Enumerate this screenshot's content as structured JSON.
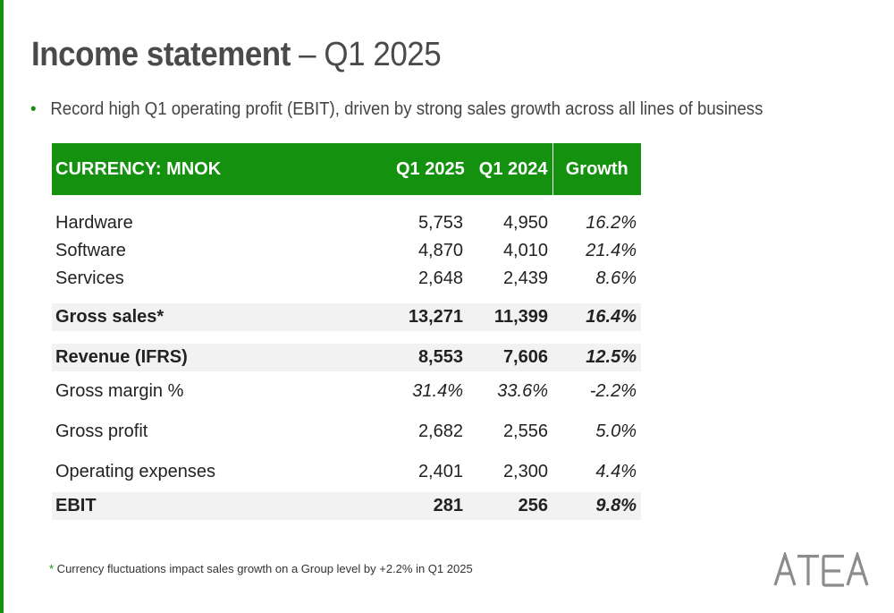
{
  "slide": {
    "title_bold": "Income statement",
    "title_rest": " – Q1 2025",
    "bullet": "Record high Q1 operating profit (EBIT), driven by strong sales growth across all lines of business",
    "accent_color": "#13910f"
  },
  "table": {
    "headers": [
      "CURRENCY: MNOK",
      "Q1 2025",
      "Q1 2024",
      "Growth"
    ],
    "rows": [
      [
        "Hardware",
        "5,753",
        "4,950",
        "16.2%"
      ],
      [
        "Software",
        "4,870",
        "4,010",
        "21.4%"
      ],
      [
        "Services",
        "2,648",
        "2,439",
        "8.6%"
      ],
      [
        "Gross sales*",
        "13,271",
        "11,399",
        "16.4%"
      ],
      [
        "Revenue (IFRS)",
        "8,553",
        "7,606",
        "12.5%"
      ],
      [
        "Gross margin %",
        "31.4%",
        "33.6%",
        "-2.2%"
      ],
      [
        "Gross profit",
        "2,682",
        "2,556",
        "5.0%"
      ],
      [
        "Operating expenses",
        "2,401",
        "2,300",
        "4.4%"
      ],
      [
        "EBIT",
        "281",
        "256",
        "9.8%"
      ]
    ]
  },
  "footnote": {
    "marker": "*",
    "text": " Currency fluctuations impact sales growth on a Group level by +2.2% in Q1 2025"
  },
  "logo": {
    "text": "ATEA",
    "color": "#8c8c8c"
  }
}
